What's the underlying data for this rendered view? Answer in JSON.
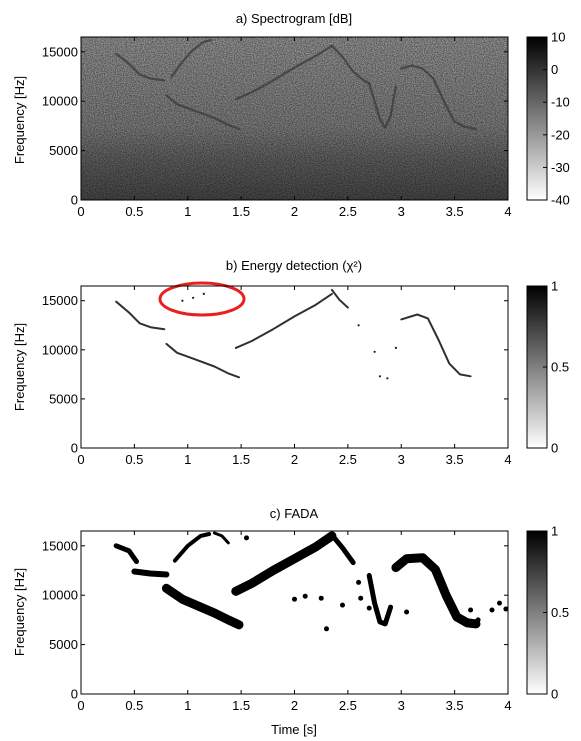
{
  "chart_data": [
    {
      "type": "heatmap",
      "panel": "a",
      "title": "a) Spectrogram [dB]",
      "xlabel": "",
      "ylabel": "Frequency [Hz]",
      "xlim": [
        0,
        4
      ],
      "ylim": [
        0,
        16500
      ],
      "x_ticks": [
        "0",
        "0.5",
        "1",
        "1.5",
        "2",
        "2.5",
        "3",
        "3.5",
        "4"
      ],
      "y_ticks": [
        "0",
        "5000",
        "10000",
        "15000"
      ],
      "colorbar": {
        "range": [
          -40,
          10
        ],
        "ticks": [
          "10",
          "0",
          "-10",
          "-20",
          "-30",
          "-40"
        ]
      },
      "background": "noise",
      "traces": [
        {
          "x": [
            0.33,
            0.45,
            0.55,
            0.65,
            0.78
          ],
          "y": [
            14800,
            13800,
            12700,
            12300,
            12100
          ]
        },
        {
          "x": [
            0.8,
            0.9,
            1.0,
            1.1,
            1.25,
            1.38,
            1.48
          ],
          "y": [
            10600,
            9700,
            9300,
            8900,
            8300,
            7600,
            7200
          ]
        },
        {
          "x": [
            0.85,
            0.95,
            1.05,
            1.15,
            1.22
          ],
          "y": [
            12500,
            14000,
            15200,
            16000,
            16200
          ]
        },
        {
          "x": [
            1.45,
            1.6,
            1.8,
            2.0,
            2.2,
            2.35
          ],
          "y": [
            10200,
            10900,
            12100,
            13400,
            14600,
            15600
          ]
        },
        {
          "x": [
            2.35,
            2.45,
            2.55,
            2.65,
            2.7
          ],
          "y": [
            15600,
            14500,
            13000,
            12100,
            11800
          ]
        },
        {
          "x": [
            2.7,
            2.75,
            2.8,
            2.85,
            2.9,
            2.95
          ],
          "y": [
            11800,
            10000,
            8200,
            7300,
            8500,
            11500
          ]
        },
        {
          "x": [
            3.0,
            3.1,
            3.2,
            3.3,
            3.4,
            3.5,
            3.6,
            3.7
          ],
          "y": [
            13300,
            13600,
            13300,
            12300,
            10000,
            7900,
            7400,
            7200
          ]
        }
      ]
    },
    {
      "type": "heatmap",
      "panel": "b",
      "title": "b) Energy detection (χ²)",
      "xlabel": "",
      "ylabel": "Frequency [Hz]",
      "xlim": [
        0,
        4
      ],
      "ylim": [
        0,
        16500
      ],
      "x_ticks": [
        "0",
        "0.5",
        "1",
        "1.5",
        "2",
        "2.5",
        "3",
        "3.5",
        "4"
      ],
      "y_ticks": [
        "0",
        "5000",
        "10000",
        "15000"
      ],
      "colorbar": {
        "range": [
          0,
          1
        ],
        "ticks": [
          "1",
          "0.5",
          "0"
        ]
      },
      "annotation": {
        "shape": "ellipse",
        "color": "#e8201e",
        "center": [
          1.1,
          15600
        ]
      },
      "traces": [
        {
          "x": [
            0.33,
            0.45,
            0.55,
            0.65,
            0.78
          ],
          "y": [
            14900,
            13800,
            12700,
            12300,
            12100
          ]
        },
        {
          "x": [
            0.8,
            0.9,
            1.0,
            1.1,
            1.25,
            1.38,
            1.48
          ],
          "y": [
            10600,
            9700,
            9300,
            8900,
            8300,
            7600,
            7200
          ]
        },
        {
          "x": [
            1.45,
            1.6,
            1.8,
            2.0,
            2.2,
            2.35
          ],
          "y": [
            10200,
            10900,
            12100,
            13400,
            14600,
            15700
          ]
        },
        {
          "x": [
            2.35,
            2.42,
            2.5
          ],
          "y": [
            16100,
            15100,
            14300
          ]
        },
        {
          "x": [
            3.0,
            3.15,
            3.25,
            3.35,
            3.45,
            3.55,
            3.65
          ],
          "y": [
            13100,
            13600,
            13200,
            11000,
            8600,
            7500,
            7300
          ]
        }
      ],
      "dots": [
        {
          "x": 0.95,
          "y": 15000
        },
        {
          "x": 1.05,
          "y": 15300
        },
        {
          "x": 1.15,
          "y": 15700
        },
        {
          "x": 2.6,
          "y": 12500
        },
        {
          "x": 2.75,
          "y": 9800
        },
        {
          "x": 2.8,
          "y": 7300
        },
        {
          "x": 2.87,
          "y": 7100
        },
        {
          "x": 2.95,
          "y": 10200
        }
      ]
    },
    {
      "type": "heatmap",
      "panel": "c",
      "title": "c) FADA",
      "xlabel": "Time [s]",
      "ylabel": "Frequency [Hz]",
      "xlim": [
        0,
        4
      ],
      "ylim": [
        0,
        16500
      ],
      "x_ticks": [
        "0",
        "0.5",
        "1",
        "1.5",
        "2",
        "2.5",
        "3",
        "3.5",
        "4"
      ],
      "y_ticks": [
        "0",
        "5000",
        "10000",
        "15000"
      ],
      "colorbar": {
        "range": [
          0,
          1
        ],
        "ticks": [
          "1",
          "0.5",
          "0"
        ]
      },
      "traces": [
        {
          "x": [
            0.33,
            0.45,
            0.52
          ],
          "y": [
            15000,
            14500,
            13400
          ],
          "w": 5
        },
        {
          "x": [
            0.5,
            0.65,
            0.8
          ],
          "y": [
            12400,
            12200,
            12100
          ],
          "w": 6
        },
        {
          "x": [
            0.8,
            0.95,
            1.1,
            1.25,
            1.38,
            1.48
          ],
          "y": [
            10700,
            9600,
            8900,
            8200,
            7500,
            7000
          ],
          "w": 9
        },
        {
          "x": [
            0.88,
            1.0,
            1.12,
            1.2
          ],
          "y": [
            13500,
            15000,
            16000,
            16200
          ],
          "w": 4
        },
        {
          "x": [
            1.25,
            1.32,
            1.38
          ],
          "y": [
            16300,
            16000,
            15300
          ],
          "w": 3
        },
        {
          "x": [
            1.45,
            1.6,
            1.8,
            2.0,
            2.2,
            2.35
          ],
          "y": [
            10400,
            11200,
            12500,
            13700,
            14900,
            16000
          ],
          "w": 9
        },
        {
          "x": [
            2.35,
            2.45,
            2.55
          ],
          "y": [
            16100,
            14800,
            13300
          ],
          "w": 5
        },
        {
          "x": [
            2.7,
            2.75,
            2.8,
            2.85,
            2.9
          ],
          "y": [
            12000,
            9200,
            7300,
            7100,
            8800
          ],
          "w": 5
        },
        {
          "x": [
            2.95,
            3.05,
            3.2,
            3.32,
            3.42,
            3.52,
            3.62,
            3.7
          ],
          "y": [
            12800,
            13700,
            13800,
            12600,
            10000,
            7800,
            7200,
            7100
          ],
          "w": 9
        }
      ],
      "dots": [
        {
          "x": 1.55,
          "y": 15800
        },
        {
          "x": 2.0,
          "y": 9600
        },
        {
          "x": 2.25,
          "y": 9700
        },
        {
          "x": 2.45,
          "y": 9000
        },
        {
          "x": 2.6,
          "y": 11300
        },
        {
          "x": 2.62,
          "y": 9700
        },
        {
          "x": 2.3,
          "y": 6600
        },
        {
          "x": 2.7,
          "y": 8700
        },
        {
          "x": 3.05,
          "y": 8300
        },
        {
          "x": 3.65,
          "y": 8500
        },
        {
          "x": 3.72,
          "y": 7500
        },
        {
          "x": 3.85,
          "y": 8500
        },
        {
          "x": 3.92,
          "y": 9200
        },
        {
          "x": 3.98,
          "y": 8600
        },
        {
          "x": 2.1,
          "y": 9900
        }
      ]
    }
  ]
}
